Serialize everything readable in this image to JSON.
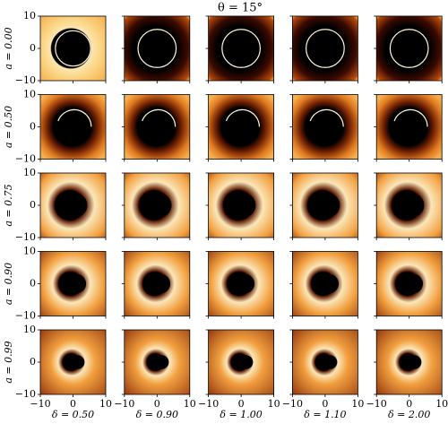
{
  "chart_data": {
    "type": "image_grid",
    "title": "θ = 15°",
    "row_labels": [
      "a = 0.00",
      "a = 0.50",
      "a = 0.75",
      "a = 0.90",
      "a = 0.99"
    ],
    "col_labels": [
      "δ = 0.50",
      "δ = 0.90",
      "δ = 1.00",
      "δ = 1.10",
      "δ = 2.00"
    ],
    "xlim": [
      -10,
      10
    ],
    "ylim": [
      -10,
      10
    ],
    "xticks": [
      {
        "value": -10,
        "label": "−10"
      },
      0,
      10
    ],
    "yticks": [
      {
        "value": -10,
        "label": "−10"
      },
      0,
      10
    ]
  }
}
